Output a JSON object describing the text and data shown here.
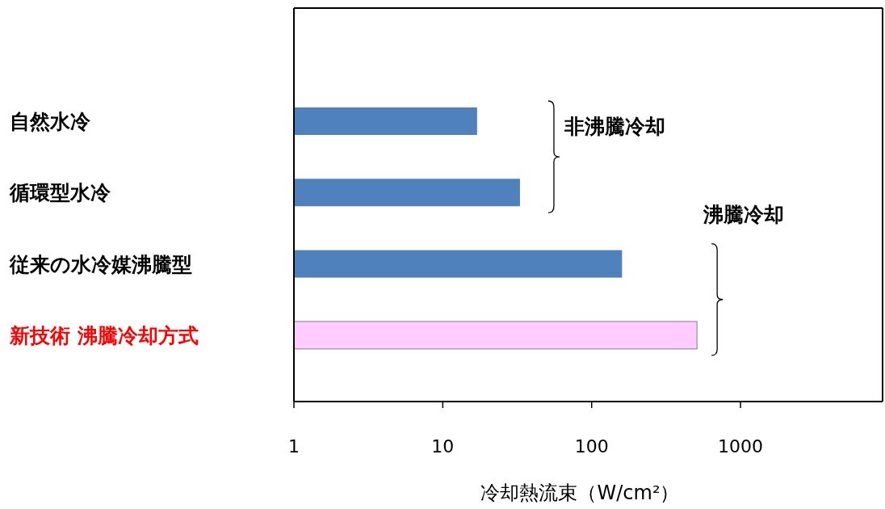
{
  "chart_data": {
    "type": "bar",
    "orientation": "horizontal",
    "log": "x",
    "categories": [
      "自然水冷",
      "循環型水冷",
      "従来の水冷媒沸騰型",
      "新技術  沸騰冷却方式"
    ],
    "values": [
      17,
      33,
      160,
      510
    ],
    "colors": [
      "#4f81bd",
      "#4f81bd",
      "#4f81bd",
      "#ffccff"
    ],
    "xlim": [
      1,
      9000
    ],
    "xticks": [
      1,
      10,
      100,
      1000
    ],
    "xlabel": "冷却熱流束（W/cm²）",
    "annotations": [
      "非沸騰冷却",
      "沸騰冷却"
    ]
  }
}
